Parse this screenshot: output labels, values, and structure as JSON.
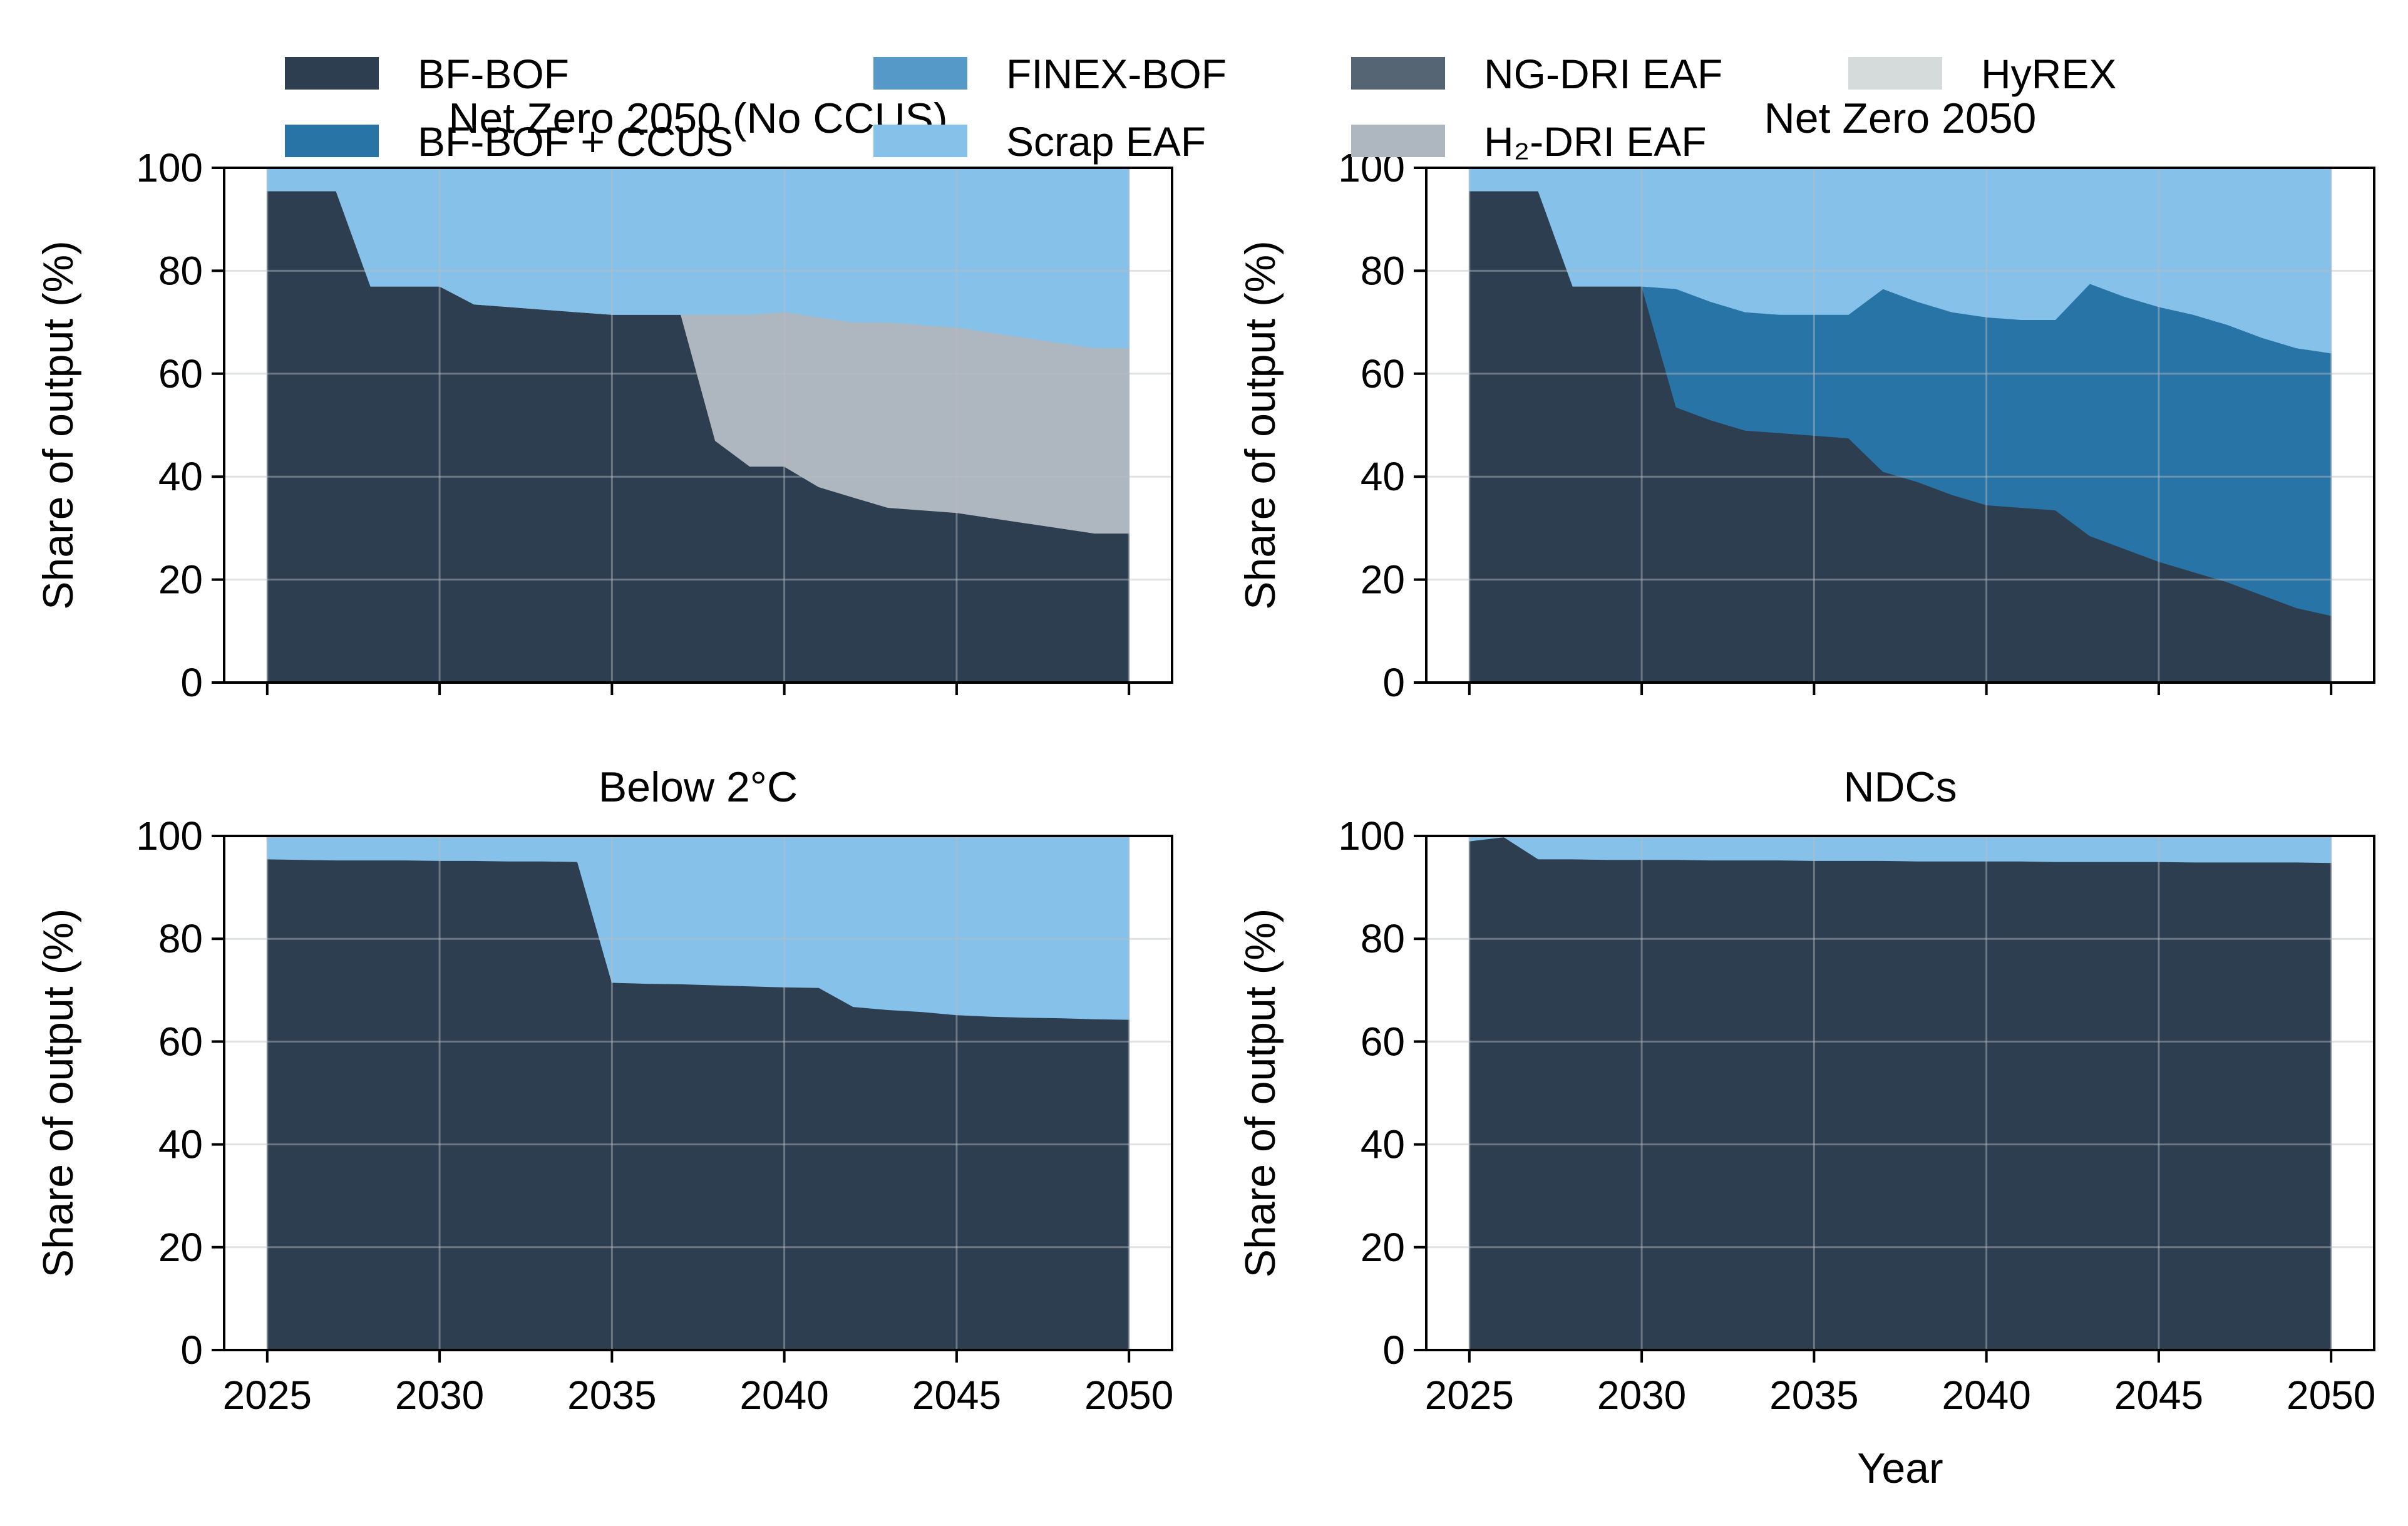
{
  "legend": {
    "items": [
      {
        "label": "BF-BOF",
        "color": "#2d3e50"
      },
      {
        "label": "BF-BOF + CCUS",
        "color": "#2874a6"
      },
      {
        "label": "FINEX-BOF",
        "color": "#5499c7"
      },
      {
        "label": "Scrap EAF",
        "color": "#85c1e9"
      },
      {
        "label": "NG-DRI EAF",
        "color": "#566573"
      },
      {
        "label": "H₂-DRI EAF",
        "color": "#aeb6bf"
      },
      {
        "label": "HyREX",
        "color": "#d5dbdb"
      }
    ]
  },
  "chart_data": [
    {
      "type": "area",
      "stacked": true,
      "title": "Net Zero 2050 (No CCUS)",
      "xlabel": "",
      "ylabel": "Share of output (%)",
      "xlim": [
        2023.75,
        2051.25
      ],
      "ylim": [
        0,
        100
      ],
      "xticks": [
        2025,
        2030,
        2035,
        2040,
        2045,
        2050
      ],
      "yticks": [
        0,
        20,
        40,
        60,
        80,
        100
      ],
      "grid": true,
      "x": [
        2025,
        2026,
        2027,
        2028,
        2029,
        2030,
        2031,
        2032,
        2033,
        2034,
        2035,
        2036,
        2037,
        2038,
        2039,
        2040,
        2041,
        2042,
        2043,
        2044,
        2045,
        2046,
        2047,
        2048,
        2049,
        2050
      ],
      "series": [
        {
          "name": "BF-BOF",
          "color": "#2d3e50",
          "values": [
            95.5,
            95.5,
            95.5,
            77,
            77,
            77,
            73.5,
            73,
            72.5,
            72,
            71.5,
            71.5,
            71.5,
            47,
            42,
            42,
            38,
            36,
            34,
            33.5,
            33,
            32,
            31,
            30,
            29,
            29
          ]
        },
        {
          "name": "H₂-DRI EAF",
          "color": "#aeb6bf",
          "values": [
            0,
            0,
            0,
            0,
            0,
            0,
            0,
            0,
            0,
            0,
            0,
            0,
            0,
            24.5,
            29.5,
            30,
            33,
            34,
            36,
            36,
            36,
            36,
            36,
            36,
            36,
            36
          ]
        },
        {
          "name": "Scrap EAF",
          "color": "#85c1e9",
          "values": [
            4.5,
            4.5,
            4.5,
            23,
            23,
            23,
            26.5,
            27,
            27.5,
            28,
            28.5,
            28.5,
            28.5,
            28.5,
            28.5,
            28,
            29,
            30,
            30,
            30.5,
            31,
            32,
            33,
            34,
            35,
            35
          ]
        }
      ]
    },
    {
      "type": "area",
      "stacked": true,
      "title": "Net Zero 2050",
      "xlabel": "",
      "ylabel": "Share of output (%)",
      "xlim": [
        2023.75,
        2051.25
      ],
      "ylim": [
        0,
        100
      ],
      "xticks": [
        2025,
        2030,
        2035,
        2040,
        2045,
        2050
      ],
      "yticks": [
        0,
        20,
        40,
        60,
        80,
        100
      ],
      "grid": true,
      "x": [
        2025,
        2026,
        2027,
        2028,
        2029,
        2030,
        2031,
        2032,
        2033,
        2034,
        2035,
        2036,
        2037,
        2038,
        2039,
        2040,
        2041,
        2042,
        2043,
        2044,
        2045,
        2046,
        2047,
        2048,
        2049,
        2050
      ],
      "series": [
        {
          "name": "BF-BOF",
          "color": "#2d3e50",
          "values": [
            95.5,
            95.5,
            95.5,
            77,
            77,
            77,
            53.5,
            51,
            49,
            48.5,
            48,
            47.5,
            41,
            39,
            36.5,
            34.5,
            34,
            33.5,
            28.5,
            26,
            23.5,
            21.5,
            19.5,
            17,
            14.5,
            13
          ]
        },
        {
          "name": "BF-BOF + CCUS",
          "color": "#2874a6",
          "values": [
            0,
            0,
            0,
            0,
            0,
            0,
            23,
            23,
            23,
            23,
            23.5,
            24,
            35.5,
            35,
            35.5,
            36.5,
            36.5,
            37,
            49,
            49,
            49.5,
            50,
            50,
            50,
            50.5,
            51
          ]
        },
        {
          "name": "Scrap EAF",
          "color": "#85c1e9",
          "values": [
            4.5,
            4.5,
            4.5,
            23,
            23,
            23,
            23.5,
            26,
            28,
            28.5,
            28.5,
            28.5,
            23.5,
            26,
            28,
            29,
            29.5,
            29.5,
            22.5,
            25,
            27,
            28.5,
            30.5,
            33,
            35,
            36
          ]
        }
      ]
    },
    {
      "type": "area",
      "stacked": true,
      "title": "Below 2°C",
      "xlabel": "",
      "ylabel": "Share of output (%)",
      "xlim": [
        2023.75,
        2051.25
      ],
      "ylim": [
        0,
        100
      ],
      "xticks": [
        2025,
        2030,
        2035,
        2040,
        2045,
        2050
      ],
      "yticks": [
        0,
        20,
        40,
        60,
        80,
        100
      ],
      "grid": true,
      "x": [
        2025,
        2026,
        2027,
        2028,
        2029,
        2030,
        2031,
        2032,
        2033,
        2034,
        2035,
        2036,
        2037,
        2038,
        2039,
        2040,
        2041,
        2042,
        2043,
        2044,
        2045,
        2046,
        2047,
        2048,
        2049,
        2050
      ],
      "series": [
        {
          "name": "BF-BOF",
          "color": "#2d3e50",
          "values": [
            95.5,
            95.4,
            95.3,
            95.3,
            95.3,
            95.2,
            95.2,
            95.1,
            95.1,
            95,
            71.5,
            71.3,
            71.2,
            71,
            70.8,
            70.6,
            70.5,
            66.8,
            66.2,
            65.8,
            65.2,
            64.9,
            64.7,
            64.6,
            64.4,
            64.3
          ]
        },
        {
          "name": "Scrap EAF",
          "color": "#85c1e9",
          "values": [
            4.5,
            4.6,
            4.7,
            4.7,
            4.7,
            4.8,
            4.8,
            4.9,
            4.9,
            5,
            28.5,
            28.7,
            28.8,
            29,
            29.2,
            29.4,
            29.5,
            33.2,
            33.8,
            34.2,
            34.8,
            35.1,
            35.3,
            35.4,
            35.6,
            35.7
          ]
        }
      ]
    },
    {
      "type": "area",
      "stacked": true,
      "title": "NDCs",
      "xlabel": "Year",
      "ylabel": "Share of output (%)",
      "xlim": [
        2023.75,
        2051.25
      ],
      "ylim": [
        0,
        100
      ],
      "xticks": [
        2025,
        2030,
        2035,
        2040,
        2045,
        2050
      ],
      "yticks": [
        0,
        20,
        40,
        60,
        80,
        100
      ],
      "grid": true,
      "x": [
        2025,
        2026,
        2027,
        2028,
        2029,
        2030,
        2031,
        2032,
        2033,
        2034,
        2035,
        2036,
        2037,
        2038,
        2039,
        2040,
        2041,
        2042,
        2043,
        2044,
        2045,
        2046,
        2047,
        2048,
        2049,
        2050
      ],
      "series": [
        {
          "name": "BF-BOF",
          "color": "#2d3e50",
          "values": [
            99,
            99.8,
            95.5,
            95.5,
            95.4,
            95.4,
            95.4,
            95.3,
            95.3,
            95.3,
            95.2,
            95.2,
            95.2,
            95.1,
            95.1,
            95.1,
            95.1,
            95,
            95,
            95,
            95,
            94.9,
            94.9,
            94.9,
            94.9,
            94.8
          ]
        },
        {
          "name": "Scrap EAF",
          "color": "#85c1e9",
          "values": [
            1,
            0.2,
            4.5,
            4.5,
            4.6,
            4.6,
            4.6,
            4.7,
            4.7,
            4.7,
            4.8,
            4.8,
            4.8,
            4.9,
            4.9,
            4.9,
            4.9,
            5,
            5,
            5,
            5,
            5.1,
            5.1,
            5.1,
            5.1,
            5.2
          ]
        }
      ]
    }
  ]
}
